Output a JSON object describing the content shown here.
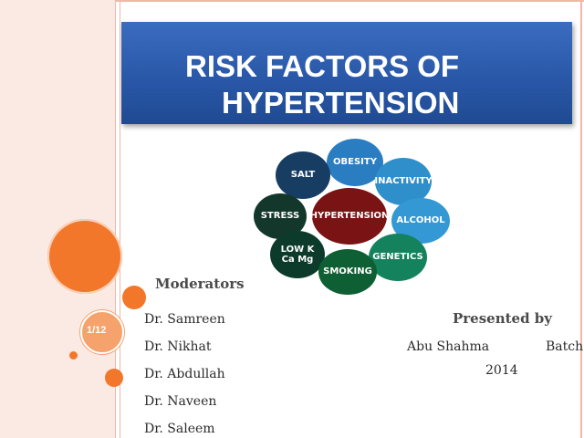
{
  "slide": {
    "title_line1": "RISK FACTORS OF",
    "title_line2": "HYPERTENSION",
    "page_number": "1/12"
  },
  "diagram": {
    "center": "HYPERTENSION",
    "factors": {
      "obesity": "OBESITY",
      "salt": "SALT",
      "inactivity": "INACTIVITY",
      "stress": "STRESS",
      "alcohol": "ALCOHOL",
      "low_k_ca_mg": "LOW K\nCa Mg",
      "genetics": "GENETICS",
      "smoking": "SMOKING"
    }
  },
  "moderators": {
    "heading": "Moderators",
    "names": [
      "Dr. Samreen",
      "Dr. Nikhat",
      "Dr. Abdullah",
      "Dr. Naveen",
      "Dr. Saleem"
    ]
  },
  "presenter": {
    "heading": "Presented by",
    "name": "Abu Shahma",
    "batch_label": "Batch",
    "batch_year": "2014"
  },
  "colors": {
    "title_bg": "#2a58a8",
    "accent_orange": "#f07b2a",
    "center_bubble": "#7a1414"
  }
}
